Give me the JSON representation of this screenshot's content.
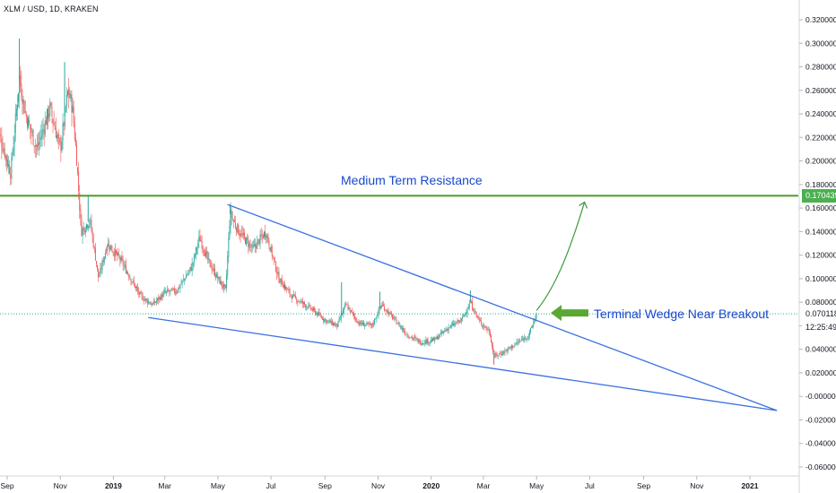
{
  "header": {
    "symbol": "XLM / USD, 1D, KRAKEN"
  },
  "annotations": {
    "resistance_label": "Medium Term Resistance",
    "wedge_label": "Terminal Wedge Near Breakout"
  },
  "price_tags": {
    "resistance": "0.170439",
    "last_price": "0.070118",
    "countdown": "12:25:49"
  },
  "colors": {
    "up": "#26a69a",
    "down": "#ef5350",
    "wedge_lines": "#3a70e0",
    "resistance_line": "#4c9a2a",
    "arrow": "#5aa832",
    "projection": "#3a9a3a",
    "label_text": "#1848cc",
    "price_dots": "#26a69a"
  },
  "chart_data": {
    "type": "candlestick",
    "title": "XLM / USD, 1D, KRAKEN",
    "y_axis": {
      "ylim": [
        -0.065,
        0.325
      ],
      "ticks": [
        "0.320000",
        "0.300000",
        "0.280000",
        "0.260000",
        "0.240000",
        "0.220000",
        "0.200000",
        "0.180000",
        "0.160000",
        "0.140000",
        "0.120000",
        "0.100000",
        "0.080000",
        "0.060000",
        "0.040000",
        "0.020000",
        "-0.000000",
        "-0.020000",
        "-0.040000",
        "-0.060000"
      ],
      "tick_values": [
        0.32,
        0.3,
        0.28,
        0.26,
        0.24,
        0.22,
        0.2,
        0.18,
        0.16,
        0.14,
        0.12,
        0.1,
        0.08,
        0.06,
        0.04,
        0.02,
        0.0,
        -0.02,
        -0.04,
        -0.06
      ]
    },
    "x_axis": {
      "ticks": [
        "Sep",
        "Nov",
        "2019",
        "Mar",
        "May",
        "Jul",
        "Sep",
        "Nov",
        "2020",
        "Mar",
        "May",
        "Jul",
        "Sep",
        "Nov",
        "2021"
      ],
      "tick_dates": [
        "2018-09-01",
        "2018-11-01",
        "2019-01-01",
        "2019-03-01",
        "2019-05-01",
        "2019-07-01",
        "2019-09-01",
        "2019-11-01",
        "2020-01-01",
        "2020-03-01",
        "2020-05-01",
        "2020-07-01",
        "2020-09-01",
        "2020-11-01",
        "2021-01-01"
      ]
    },
    "price_path": [
      [
        "2018-08-20",
        0.23
      ],
      [
        "2018-09-05",
        0.19
      ],
      [
        "2018-09-15",
        0.27
      ],
      [
        "2018-09-22",
        0.24
      ],
      [
        "2018-10-05",
        0.21
      ],
      [
        "2018-10-20",
        0.245
      ],
      [
        "2018-11-01",
        0.21
      ],
      [
        "2018-11-10",
        0.26
      ],
      [
        "2018-11-15",
        0.245
      ],
      [
        "2018-11-20",
        0.2
      ],
      [
        "2018-11-25",
        0.14
      ],
      [
        "2018-12-05",
        0.15
      ],
      [
        "2018-12-15",
        0.1
      ],
      [
        "2018-12-25",
        0.13
      ],
      [
        "2019-01-10",
        0.115
      ],
      [
        "2019-02-01",
        0.085
      ],
      [
        "2019-02-15",
        0.078
      ],
      [
        "2019-03-01",
        0.088
      ],
      [
        "2019-03-15",
        0.09
      ],
      [
        "2019-04-01",
        0.11
      ],
      [
        "2019-04-10",
        0.135
      ],
      [
        "2019-04-20",
        0.115
      ],
      [
        "2019-05-01",
        0.1
      ],
      [
        "2019-05-10",
        0.09
      ],
      [
        "2019-05-15",
        0.155
      ],
      [
        "2019-05-25",
        0.14
      ],
      [
        "2019-06-10",
        0.125
      ],
      [
        "2019-06-25",
        0.14
      ],
      [
        "2019-07-10",
        0.1
      ],
      [
        "2019-07-25",
        0.085
      ],
      [
        "2019-08-15",
        0.075
      ],
      [
        "2019-09-01",
        0.065
      ],
      [
        "2019-09-15",
        0.06
      ],
      [
        "2019-09-25",
        0.078
      ],
      [
        "2019-10-10",
        0.062
      ],
      [
        "2019-10-25",
        0.06
      ],
      [
        "2019-11-05",
        0.078
      ],
      [
        "2019-11-20",
        0.065
      ],
      [
        "2019-12-05",
        0.052
      ],
      [
        "2019-12-20",
        0.046
      ],
      [
        "2020-01-05",
        0.048
      ],
      [
        "2020-01-20",
        0.058
      ],
      [
        "2020-02-05",
        0.065
      ],
      [
        "2020-02-15",
        0.08
      ],
      [
        "2020-02-25",
        0.064
      ],
      [
        "2020-03-08",
        0.055
      ],
      [
        "2020-03-13",
        0.034
      ],
      [
        "2020-03-25",
        0.038
      ],
      [
        "2020-04-10",
        0.046
      ],
      [
        "2020-04-22",
        0.052
      ],
      [
        "2020-05-01",
        0.07
      ]
    ],
    "spikes": [
      [
        "2018-09-15",
        0.304
      ],
      [
        "2018-11-06",
        0.284
      ],
      [
        "2018-12-03",
        0.17
      ],
      [
        "2019-05-15",
        0.163
      ],
      [
        "2019-09-20",
        0.097
      ],
      [
        "2019-11-03",
        0.089
      ],
      [
        "2020-02-15",
        0.09
      ],
      [
        "2020-03-13",
        0.027
      ]
    ],
    "last_price": 0.070118,
    "levels": [
      {
        "name": "Medium Term Resistance",
        "y": 0.170439
      }
    ],
    "trendlines": [
      {
        "from": [
          "2019-05-12",
          0.163
        ],
        "to": [
          "2021-02-01",
          -0.012
        ]
      },
      {
        "from": [
          "2019-02-10",
          0.067
        ],
        "to": [
          "2021-02-01",
          -0.012
        ]
      }
    ],
    "projection": {
      "from": [
        "2020-05-01",
        0.073
      ],
      "to": [
        "2020-06-25",
        0.165
      ]
    },
    "grid": false
  }
}
